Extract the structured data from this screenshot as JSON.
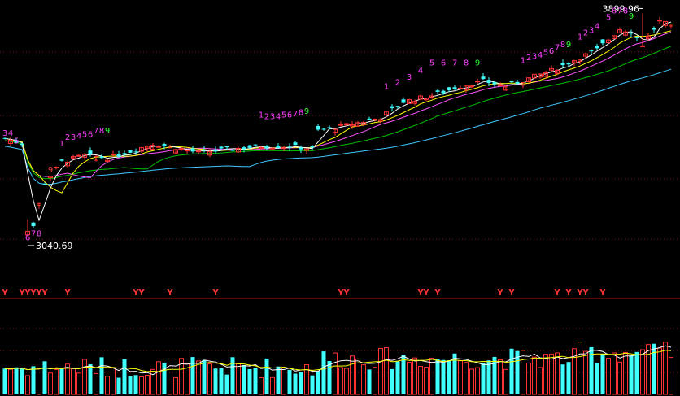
{
  "chart_data": [
    {
      "type": "candlestick",
      "title": "",
      "price_range": [
        3040.69,
        3899.96
      ],
      "high_label": "3899.96",
      "low_label": "3040.69",
      "grid": "dotted horizontal",
      "ma_colors": {
        "ma5": "#ffffff",
        "ma10": "#ffff00",
        "ma20": "#ff55ff",
        "ma30": "#00c000",
        "ma60": "#40c8ff"
      },
      "sequence_marks": [
        {
          "label": "3",
          "bar": 0,
          "price": 3430,
          "color": "#ff40ff"
        },
        {
          "label": "4",
          "bar": 1,
          "price": 3430,
          "color": "#ff40ff"
        },
        {
          "label": "5",
          "bar": 2,
          "price": 3400,
          "color": "#ff40ff"
        },
        {
          "label": "6",
          "bar": 4,
          "price": 3030,
          "color": "#ff40ff"
        },
        {
          "label": "7",
          "bar": 5,
          "price": 3045,
          "color": "#ff40ff"
        },
        {
          "label": "8",
          "bar": 6,
          "price": 3045,
          "color": "#ff40ff"
        },
        {
          "label": "9",
          "bar": 8,
          "price": 3290,
          "color": "#ff4040"
        },
        {
          "label": "1",
          "bar": 10,
          "price": 3390,
          "color": "#ff40ff"
        },
        {
          "label": "2",
          "bar": 11,
          "price": 3415,
          "color": "#ff40ff"
        },
        {
          "label": "3",
          "bar": 12,
          "price": 3415,
          "color": "#ff40ff"
        },
        {
          "label": "4",
          "bar": 13,
          "price": 3420,
          "color": "#ff40ff"
        },
        {
          "label": "5",
          "bar": 14,
          "price": 3425,
          "color": "#ff40ff"
        },
        {
          "label": "6",
          "bar": 15,
          "price": 3425,
          "color": "#ff40ff"
        },
        {
          "label": "7",
          "bar": 16,
          "price": 3440,
          "color": "#ff40ff"
        },
        {
          "label": "8",
          "bar": 17,
          "price": 3440,
          "color": "#ff40ff"
        },
        {
          "label": "9",
          "bar": 18,
          "price": 3440,
          "color": "#33ff33"
        },
        {
          "label": "1",
          "bar": 45,
          "price": 3500,
          "color": "#ff40ff"
        },
        {
          "label": "2",
          "bar": 46,
          "price": 3495,
          "color": "#ff40ff"
        },
        {
          "label": "3",
          "bar": 47,
          "price": 3495,
          "color": "#ff40ff"
        },
        {
          "label": "4",
          "bar": 48,
          "price": 3495,
          "color": "#ff40ff"
        },
        {
          "label": "5",
          "bar": 49,
          "price": 3500,
          "color": "#ff40ff"
        },
        {
          "label": "6",
          "bar": 50,
          "price": 3500,
          "color": "#ff40ff"
        },
        {
          "label": "7",
          "bar": 51,
          "price": 3505,
          "color": "#ff40ff"
        },
        {
          "label": "8",
          "bar": 52,
          "price": 3510,
          "color": "#ff40ff"
        },
        {
          "label": "9",
          "bar": 53,
          "price": 3515,
          "color": "#33ff33"
        },
        {
          "label": "1",
          "bar": 67,
          "price": 3610,
          "color": "#ff40ff"
        },
        {
          "label": "2",
          "bar": 69,
          "price": 3625,
          "color": "#ff40ff"
        },
        {
          "label": "3",
          "bar": 71,
          "price": 3645,
          "color": "#ff40ff"
        },
        {
          "label": "4",
          "bar": 73,
          "price": 3670,
          "color": "#ff40ff"
        },
        {
          "label": "5",
          "bar": 75,
          "price": 3700,
          "color": "#ff40ff"
        },
        {
          "label": "6",
          "bar": 77,
          "price": 3700,
          "color": "#ff40ff"
        },
        {
          "label": "7",
          "bar": 79,
          "price": 3700,
          "color": "#ff40ff"
        },
        {
          "label": "8",
          "bar": 81,
          "price": 3700,
          "color": "#ff40ff"
        },
        {
          "label": "9",
          "bar": 83,
          "price": 3700,
          "color": "#33ff33"
        },
        {
          "label": "1",
          "bar": 91,
          "price": 3710,
          "color": "#ff40ff"
        },
        {
          "label": "2",
          "bar": 92,
          "price": 3720,
          "color": "#ff40ff"
        },
        {
          "label": "3",
          "bar": 93,
          "price": 3725,
          "color": "#ff40ff"
        },
        {
          "label": "4",
          "bar": 94,
          "price": 3730,
          "color": "#ff40ff"
        },
        {
          "label": "5",
          "bar": 95,
          "price": 3740,
          "color": "#ff40ff"
        },
        {
          "label": "6",
          "bar": 96,
          "price": 3745,
          "color": "#ff40ff"
        },
        {
          "label": "7",
          "bar": 97,
          "price": 3760,
          "color": "#ff40ff"
        },
        {
          "label": "8",
          "bar": 98,
          "price": 3770,
          "color": "#ff40ff"
        },
        {
          "label": "9",
          "bar": 99,
          "price": 3770,
          "color": "#33ff33"
        },
        {
          "label": "1",
          "bar": 101,
          "price": 3800,
          "color": "#ff40ff"
        },
        {
          "label": "2",
          "bar": 102,
          "price": 3815,
          "color": "#ff40ff"
        },
        {
          "label": "3",
          "bar": 103,
          "price": 3825,
          "color": "#ff40ff"
        },
        {
          "label": "4",
          "bar": 104,
          "price": 3840,
          "color": "#ff40ff"
        },
        {
          "label": "5",
          "bar": 106,
          "price": 3875,
          "color": "#ff40ff"
        },
        {
          "label": "6",
          "bar": 107,
          "price": 3900,
          "color": "#ff40ff"
        },
        {
          "label": "7",
          "bar": 108,
          "price": 3900,
          "color": "#ff40ff"
        },
        {
          "label": "8",
          "bar": 109,
          "price": 3900,
          "color": "#ff40ff"
        },
        {
          "label": "9",
          "bar": 110,
          "price": 3880,
          "color": "#33ff33"
        }
      ],
      "signal_row": {
        "label": "Y",
        "color": "#ff3333",
        "bars": [
          0,
          3,
          4,
          5,
          6,
          7,
          11,
          23,
          24,
          29,
          37,
          59,
          60,
          73,
          74,
          76,
          87,
          89,
          97,
          99,
          101,
          102,
          105
        ]
      },
      "volume": {
        "type": "bar",
        "colors": {
          "up": "#ff3333",
          "down": "#40ffff"
        }
      }
    }
  ]
}
